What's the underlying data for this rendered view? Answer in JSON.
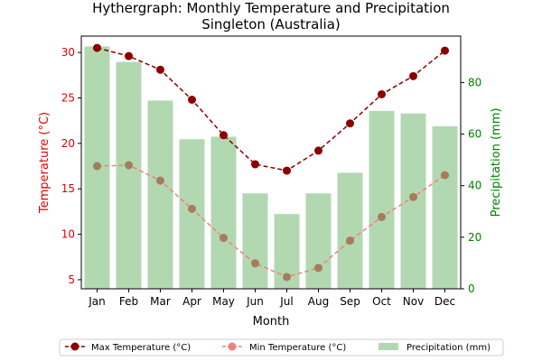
{
  "chart_data": {
    "type": "bar",
    "title": "Hythergraph: Monthly Temperature and Precipitation",
    "subtitle": "Singleton (Australia)",
    "xlabel": "Month",
    "ylabel_left": "Temperature (°C)",
    "ylabel_right": "Precipitation (mm)",
    "categories": [
      "Jan",
      "Feb",
      "Mar",
      "Apr",
      "May",
      "Jun",
      "Jul",
      "Aug",
      "Sep",
      "Oct",
      "Nov",
      "Dec"
    ],
    "ylim_left": [
      4.0,
      31.8
    ],
    "ylim_right": [
      0,
      98
    ],
    "yticks_left": [
      5,
      10,
      15,
      20,
      25,
      30
    ],
    "yticks_right": [
      0,
      20,
      40,
      60,
      80
    ],
    "grid": false,
    "legend_position": "bottom-center",
    "series": [
      {
        "name": "Max Temperature (°C)",
        "kind": "line",
        "axis": "left",
        "color": "#8b0000",
        "values": [
          30.5,
          29.6,
          28.1,
          24.8,
          20.9,
          17.7,
          17.0,
          19.2,
          22.2,
          25.4,
          27.4,
          30.2
        ]
      },
      {
        "name": "Min Temperature (°C)",
        "kind": "line",
        "axis": "left",
        "color": "#f08080",
        "values": [
          17.5,
          17.6,
          15.9,
          12.8,
          9.6,
          6.8,
          5.3,
          6.3,
          9.3,
          11.9,
          14.1,
          16.5
        ]
      },
      {
        "name": "Precipitation (mm)",
        "kind": "bar",
        "axis": "right",
        "color": "#b2d8b2",
        "values": [
          94,
          88,
          73,
          58,
          59,
          37,
          29,
          37,
          45,
          69,
          68,
          63
        ]
      }
    ],
    "colors": {
      "left_axis": "#e00000",
      "right_axis": "#008000",
      "max_marker": "#8b0000",
      "min_marker": "#a67c5b"
    }
  }
}
